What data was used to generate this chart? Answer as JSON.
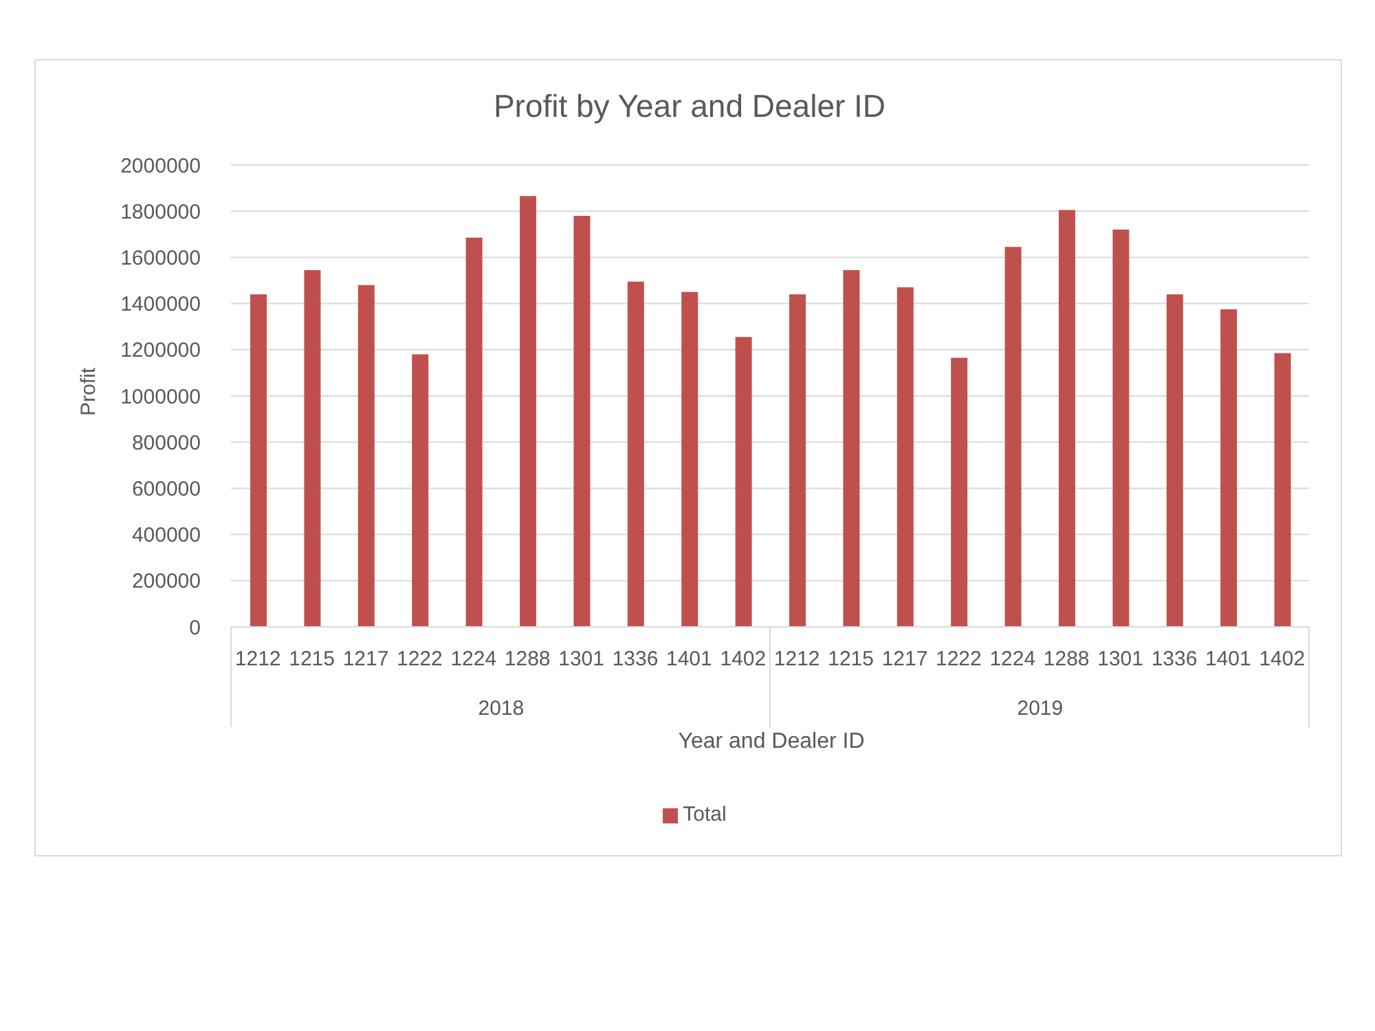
{
  "chart_data": {
    "type": "bar",
    "title": "Profit by Year and Dealer ID",
    "xlabel": "Year and Dealer ID",
    "ylabel": "Profit",
    "categories": [
      "1212",
      "1215",
      "1217",
      "1222",
      "1224",
      "1288",
      "1301",
      "1336",
      "1401",
      "1402",
      "1212",
      "1215",
      "1217",
      "1222",
      "1224",
      "1288",
      "1301",
      "1336",
      "1401",
      "1402"
    ],
    "series": [
      {
        "name": "Total",
        "color": "#c0504d",
        "values": [
          1440000,
          1545000,
          1480000,
          1180000,
          1685000,
          1865000,
          1780000,
          1495000,
          1450000,
          1255000,
          1440000,
          1545000,
          1470000,
          1165000,
          1645000,
          1805000,
          1720000,
          1440000,
          1375000,
          1185000
        ]
      }
    ],
    "ylim": [
      0,
      2000000
    ],
    "yticks": [
      0,
      200000,
      400000,
      600000,
      800000,
      1000000,
      1200000,
      1400000,
      1600000,
      1800000,
      2000000
    ],
    "grid": "y",
    "legend": "bottom",
    "annotations": [
      "2018",
      "2019"
    ]
  }
}
